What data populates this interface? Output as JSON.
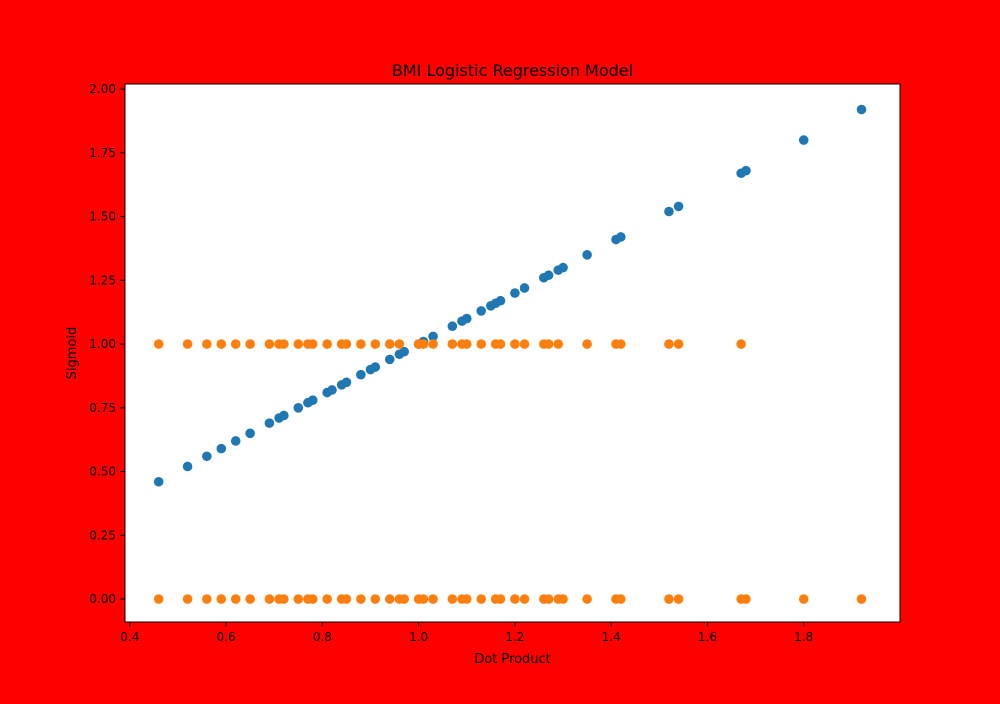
{
  "chart_data": {
    "type": "scatter",
    "title": "BMI Logistic Regression Model",
    "xlabel": "Dot Product",
    "ylabel": "Sigmoid",
    "xlim": [
      0.39,
      2.0
    ],
    "ylim": [
      -0.09,
      2.02
    ],
    "grid": false,
    "legend": "none",
    "figure_background": "#ff0000",
    "plot_background": "#ffffff",
    "xticks": [
      0.4,
      0.6,
      0.8,
      1.0,
      1.2,
      1.4,
      1.6,
      1.8
    ],
    "xtick_labels": [
      "0.4",
      "0.6",
      "0.8",
      "1.0",
      "1.2",
      "1.4",
      "1.6",
      "1.8"
    ],
    "yticks": [
      0.0,
      0.25,
      0.5,
      0.75,
      1.0,
      1.25,
      1.5,
      1.75,
      2.0
    ],
    "ytick_labels": [
      "0.00",
      "0.25",
      "0.50",
      "0.75",
      "1.00",
      "1.25",
      "1.50",
      "1.75",
      "2.00"
    ],
    "series": [
      {
        "color": "#1f77b4",
        "x": [
          0.46,
          0.52,
          0.56,
          0.59,
          0.62,
          0.65,
          0.69,
          0.71,
          0.72,
          0.75,
          0.77,
          0.78,
          0.81,
          0.82,
          0.84,
          0.85,
          0.88,
          0.9,
          0.91,
          0.94,
          0.96,
          0.97,
          1.0,
          1.01,
          1.03,
          1.07,
          1.09,
          1.1,
          1.13,
          1.15,
          1.16,
          1.17,
          1.2,
          1.22,
          1.26,
          1.27,
          1.29,
          1.3,
          1.35,
          1.41,
          1.42,
          1.52,
          1.54,
          1.67,
          1.68,
          1.8,
          1.92
        ],
        "y": [
          0.46,
          0.52,
          0.56,
          0.59,
          0.62,
          0.65,
          0.69,
          0.71,
          0.72,
          0.75,
          0.77,
          0.78,
          0.81,
          0.82,
          0.84,
          0.85,
          0.88,
          0.9,
          0.91,
          0.94,
          0.96,
          0.97,
          1.0,
          1.01,
          1.03,
          1.07,
          1.09,
          1.1,
          1.13,
          1.15,
          1.16,
          1.17,
          1.2,
          1.22,
          1.26,
          1.27,
          1.29,
          1.3,
          1.35,
          1.41,
          1.42,
          1.52,
          1.54,
          1.67,
          1.68,
          1.8,
          1.92
        ]
      },
      {
        "color": "#ff7f0e",
        "x": [
          0.46,
          0.52,
          0.56,
          0.59,
          0.62,
          0.65,
          0.69,
          0.71,
          0.72,
          0.75,
          0.77,
          0.78,
          0.81,
          0.84,
          0.85,
          0.88,
          0.91,
          0.94,
          0.96,
          1.0,
          1.01,
          1.03,
          1.07,
          1.09,
          1.1,
          1.13,
          1.16,
          1.17,
          1.2,
          1.22,
          1.26,
          1.27,
          1.29,
          1.35,
          1.41,
          1.42,
          1.52,
          1.54,
          1.67,
          0.46,
          0.52,
          0.56,
          0.59,
          0.62,
          0.65,
          0.69,
          0.71,
          0.72,
          0.75,
          0.77,
          0.78,
          0.81,
          0.84,
          0.85,
          0.88,
          0.91,
          0.94,
          0.96,
          0.97,
          1.0,
          1.01,
          1.03,
          1.07,
          1.09,
          1.1,
          1.13,
          1.16,
          1.17,
          1.2,
          1.22,
          1.26,
          1.27,
          1.29,
          1.3,
          1.35,
          1.41,
          1.42,
          1.52,
          1.54,
          1.67,
          1.68,
          1.8,
          1.92
        ],
        "y": [
          1,
          1,
          1,
          1,
          1,
          1,
          1,
          1,
          1,
          1,
          1,
          1,
          1,
          1,
          1,
          1,
          1,
          1,
          1,
          1,
          1,
          1,
          1,
          1,
          1,
          1,
          1,
          1,
          1,
          1,
          1,
          1,
          1,
          1,
          1,
          1,
          1,
          1,
          1,
          0,
          0,
          0,
          0,
          0,
          0,
          0,
          0,
          0,
          0,
          0,
          0,
          0,
          0,
          0,
          0,
          0,
          0,
          0,
          0,
          0,
          0,
          0,
          0,
          0,
          0,
          0,
          0,
          0,
          0,
          0,
          0,
          0,
          0,
          0,
          0,
          0,
          0,
          0,
          0,
          0,
          0,
          0,
          0
        ]
      }
    ]
  }
}
